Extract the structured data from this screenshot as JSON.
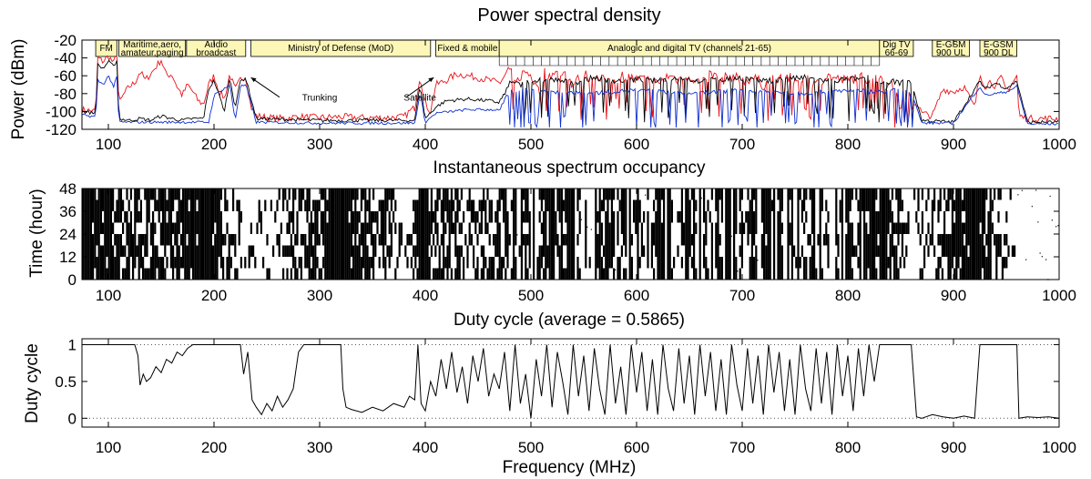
{
  "chart_data": [
    {
      "type": "line",
      "title": "Power spectral density",
      "xlabel": "",
      "ylabel": "Power (dBm)",
      "xlim": [
        75,
        1000
      ],
      "ylim": [
        -120,
        -20
      ],
      "xticks": [
        "100",
        "200",
        "300",
        "400",
        "500",
        "600",
        "700",
        "800",
        "900",
        "1000"
      ],
      "yticks": [
        "-20",
        "-40",
        "-60",
        "-80",
        "-100",
        "-120"
      ],
      "colors": {
        "max": "#e8141b",
        "avg": "#000000",
        "min": "#1030d0",
        "band_fill": "#fcf7b6"
      },
      "bands": [
        {
          "label": "FM",
          "label2": "",
          "x0": 88,
          "x1": 108
        },
        {
          "label": "Maritime,aero,",
          "label2": "amateur,paging",
          "x0": 110,
          "x1": 173
        },
        {
          "label": "Audio",
          "label2": "broadcast",
          "x0": 174,
          "x1": 230
        },
        {
          "label": "Ministry of Defense (MoD)",
          "label2": "",
          "x0": 235,
          "x1": 405
        },
        {
          "label": "Fixed & mobile",
          "label2": "",
          "x0": 410,
          "x1": 470
        },
        {
          "label": "Analogic and digital TV (channels 21-65)",
          "label2": "",
          "x0": 470,
          "x1": 830
        },
        {
          "label": "Dig TV",
          "label2": "66-69",
          "x0": 830,
          "x1": 862
        },
        {
          "label": "E-GSM",
          "label2": "900 UL",
          "x0": 880,
          "x1": 915
        },
        {
          "label": "E-GSM",
          "label2": "900 DL",
          "x0": 925,
          "x1": 960
        }
      ],
      "annotations": [
        {
          "text": "Trunking",
          "x": 300,
          "y": -88
        },
        {
          "text": "Satellite",
          "x": 395,
          "y": -88
        }
      ],
      "series": [
        {
          "key": "max",
          "x": [
            75,
            88,
            90,
            95,
            100,
            105,
            108,
            110,
            115,
            120,
            125,
            130,
            135,
            140,
            145,
            150,
            155,
            160,
            165,
            170,
            175,
            180,
            185,
            190,
            195,
            200,
            205,
            210,
            215,
            220,
            225,
            230,
            235,
            240,
            260,
            280,
            300,
            320,
            340,
            360,
            380,
            385,
            390,
            395,
            400,
            405,
            410,
            420,
            430,
            440,
            450,
            460,
            470,
            475,
            480,
            485,
            490,
            495,
            500,
            505,
            510,
            520,
            530,
            540,
            550,
            560,
            570,
            580,
            590,
            600,
            610,
            620,
            630,
            640,
            650,
            660,
            670,
            680,
            690,
            700,
            710,
            720,
            730,
            740,
            750,
            760,
            770,
            780,
            790,
            800,
            810,
            820,
            830,
            835,
            840,
            845,
            850,
            855,
            860,
            865,
            870,
            880,
            890,
            900,
            910,
            915,
            920,
            925,
            930,
            935,
            940,
            945,
            950,
            955,
            960,
            962,
            970,
            980,
            990,
            1000
          ],
          "y": [
            -98,
            -100,
            -40,
            -44,
            -38,
            -46,
            -35,
            -92,
            -80,
            -72,
            -68,
            -55,
            -65,
            -58,
            -50,
            -42,
            -60,
            -58,
            -72,
            -82,
            -70,
            -78,
            -88,
            -92,
            -70,
            -60,
            -78,
            -85,
            -58,
            -76,
            -64,
            -60,
            -95,
            -105,
            -108,
            -106,
            -107,
            -106,
            -107,
            -107,
            -106,
            -100,
            -96,
            -60,
            -92,
            -100,
            -70,
            -65,
            -58,
            -60,
            -62,
            -65,
            -68,
            -62,
            -52,
            -72,
            -60,
            -56,
            -58,
            -75,
            -56,
            -60,
            -56,
            -70,
            -58,
            -63,
            -66,
            -62,
            -60,
            -65,
            -62,
            -70,
            -60,
            -64,
            -60,
            -68,
            -58,
            -65,
            -60,
            -66,
            -62,
            -70,
            -64,
            -60,
            -66,
            -62,
            -70,
            -60,
            -64,
            -66,
            -60,
            -64,
            -58,
            -80,
            -62,
            -78,
            -95,
            -60,
            -94,
            -90,
            -102,
            -105,
            -75,
            -78,
            -72,
            -84,
            -96,
            -58,
            -72,
            -66,
            -72,
            -62,
            -76,
            -70,
            -60,
            -105,
            -108,
            -108,
            -108,
            -108
          ]
        },
        {
          "key": "avg",
          "x": [
            75,
            88,
            90,
            95,
            100,
            105,
            108,
            110,
            120,
            130,
            140,
            150,
            160,
            170,
            180,
            190,
            195,
            200,
            210,
            215,
            220,
            225,
            230,
            240,
            300,
            360,
            390,
            395,
            400,
            410,
            420,
            440,
            460,
            470,
            480,
            490,
            500,
            520,
            540,
            560,
            580,
            600,
            620,
            640,
            660,
            680,
            700,
            720,
            740,
            760,
            780,
            800,
            820,
            830,
            840,
            850,
            860,
            870,
            900,
            925,
            930,
            940,
            950,
            960,
            970,
            1000
          ],
          "y": [
            -100,
            -102,
            -48,
            -52,
            -44,
            -50,
            -42,
            -108,
            -110,
            -108,
            -110,
            -105,
            -108,
            -110,
            -108,
            -108,
            -75,
            -65,
            -100,
            -62,
            -95,
            -66,
            -62,
            -108,
            -110,
            -110,
            -110,
            -70,
            -108,
            -95,
            -88,
            -86,
            -88,
            -90,
            -68,
            -70,
            -66,
            -64,
            -68,
            -62,
            -66,
            -64,
            -66,
            -62,
            -66,
            -64,
            -62,
            -66,
            -64,
            -62,
            -66,
            -64,
            -62,
            -70,
            -66,
            -68,
            -66,
            -110,
            -112,
            -66,
            -75,
            -68,
            -74,
            -66,
            -112,
            -112
          ]
        },
        {
          "key": "min",
          "x": [
            75,
            88,
            90,
            95,
            100,
            105,
            108,
            110,
            150,
            195,
            200,
            215,
            220,
            225,
            230,
            240,
            300,
            390,
            395,
            400,
            410,
            440,
            470,
            480,
            500,
            550,
            600,
            650,
            700,
            750,
            800,
            830,
            850,
            860,
            870,
            900,
            925,
            930,
            950,
            960,
            970,
            1000
          ],
          "y": [
            -104,
            -106,
            -65,
            -70,
            -60,
            -72,
            -62,
            -112,
            -112,
            -112,
            -82,
            -70,
            -110,
            -72,
            -70,
            -112,
            -113,
            -113,
            -80,
            -112,
            -102,
            -98,
            -98,
            -78,
            -76,
            -80,
            -76,
            -80,
            -76,
            -80,
            -76,
            -78,
            -76,
            -78,
            -113,
            -113,
            -72,
            -82,
            -78,
            -72,
            -114,
            -114
          ]
        }
      ]
    },
    {
      "type": "heatmap",
      "title": "Instantaneous spectrum occupancy",
      "xlabel": "",
      "ylabel": "Time (hour)",
      "xlim": [
        75,
        1000
      ],
      "ylim": [
        0,
        48
      ],
      "xticks": [
        "100",
        "200",
        "300",
        "400",
        "500",
        "600",
        "700",
        "800",
        "900",
        "1000"
      ],
      "yticks": [
        "0",
        "12",
        "24",
        "36",
        "48"
      ],
      "occupancy_by_frequency": {
        "x": [
          75,
          130,
          175,
          195,
          230,
          280,
          320,
          380,
          395,
          410,
          470,
          500,
          550,
          600,
          650,
          700,
          750,
          800,
          830,
          860,
          920,
          960,
          1000
        ],
        "duty": [
          1.0,
          0.55,
          0.85,
          1.0,
          0.1,
          0.5,
          1.0,
          0.2,
          1.0,
          0.5,
          0.6,
          0.45,
          0.5,
          0.55,
          0.5,
          0.5,
          0.55,
          0.5,
          1.0,
          0.05,
          1.0,
          0.0,
          0.0
        ]
      }
    },
    {
      "type": "line",
      "title": "Duty cycle (average = 0.5865)",
      "xlabel": "Frequency (MHz)",
      "ylabel": "Duty cycle",
      "xlim": [
        75,
        1000
      ],
      "ylim": [
        -0.12,
        1.08
      ],
      "xticks": [
        "100",
        "200",
        "300",
        "400",
        "500",
        "600",
        "700",
        "800",
        "900",
        "1000"
      ],
      "yticks": [
        "0",
        "0.5",
        "1"
      ],
      "reference_lines": [
        0,
        1
      ],
      "series": [
        {
          "key": "duty",
          "x": [
            75,
            125,
            128,
            130,
            133,
            136,
            140,
            145,
            150,
            155,
            160,
            165,
            170,
            175,
            180,
            195,
            225,
            228,
            232,
            236,
            240,
            245,
            250,
            255,
            260,
            265,
            270,
            275,
            280,
            285,
            320,
            322,
            325,
            330,
            340,
            350,
            360,
            370,
            380,
            385,
            390,
            393,
            396,
            400,
            405,
            410,
            415,
            420,
            425,
            430,
            435,
            440,
            445,
            450,
            455,
            460,
            465,
            470,
            475,
            480,
            485,
            490,
            495,
            500,
            505,
            510,
            515,
            520,
            525,
            530,
            535,
            540,
            545,
            550,
            555,
            560,
            565,
            570,
            575,
            580,
            585,
            590,
            595,
            600,
            605,
            610,
            615,
            620,
            625,
            630,
            635,
            640,
            645,
            650,
            655,
            660,
            665,
            670,
            675,
            680,
            685,
            690,
            695,
            700,
            705,
            710,
            715,
            720,
            725,
            730,
            735,
            740,
            745,
            750,
            755,
            760,
            765,
            770,
            775,
            780,
            785,
            790,
            795,
            800,
            805,
            810,
            815,
            820,
            825,
            830,
            860,
            865,
            870,
            880,
            890,
            900,
            910,
            920,
            925,
            960,
            962,
            970,
            980,
            990,
            1000
          ],
          "y": [
            1.0,
            1.0,
            0.85,
            0.45,
            0.6,
            0.5,
            0.55,
            0.7,
            0.62,
            0.8,
            0.75,
            0.9,
            0.85,
            0.95,
            1.0,
            1.0,
            1.0,
            0.6,
            0.9,
            0.25,
            0.15,
            0.05,
            0.2,
            0.1,
            0.3,
            0.15,
            0.25,
            0.4,
            0.9,
            1.0,
            1.0,
            0.4,
            0.15,
            0.12,
            0.08,
            0.15,
            0.1,
            0.2,
            0.15,
            0.3,
            0.25,
            1.0,
            0.2,
            0.1,
            0.5,
            0.3,
            0.8,
            0.4,
            0.9,
            0.35,
            0.7,
            0.2,
            0.85,
            0.5,
            0.95,
            0.3,
            0.6,
            0.4,
            0.9,
            0.1,
            1.0,
            0.2,
            0.6,
            0.0,
            0.8,
            0.3,
            1.0,
            0.15,
            0.9,
            0.5,
            0.05,
            1.0,
            0.3,
            0.85,
            0.1,
            0.95,
            0.4,
            0.05,
            1.0,
            0.2,
            0.7,
            0.05,
            1.0,
            0.35,
            0.9,
            0.1,
            0.8,
            0.05,
            1.0,
            0.4,
            0.1,
            0.95,
            0.2,
            0.85,
            0.05,
            1.0,
            0.3,
            0.9,
            0.1,
            0.8,
            0.05,
            1.0,
            0.45,
            0.1,
            0.95,
            0.2,
            0.85,
            0.05,
            1.0,
            0.35,
            0.9,
            0.1,
            0.8,
            0.05,
            1.0,
            0.4,
            0.1,
            0.95,
            0.2,
            0.9,
            0.05,
            1.0,
            0.3,
            0.85,
            0.1,
            0.95,
            0.3,
            1.0,
            0.5,
            1.0,
            1.0,
            0.02,
            0.0,
            0.05,
            0.02,
            0.0,
            0.03,
            0.0,
            1.0,
            1.0,
            0.0,
            0.02,
            0.01,
            0.02,
            0.0
          ]
        }
      ]
    }
  ]
}
